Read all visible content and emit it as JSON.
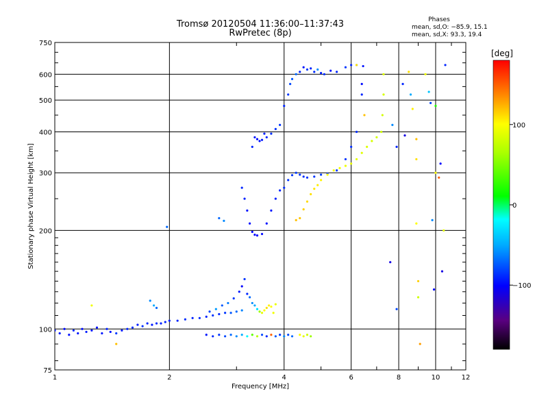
{
  "chart_data": {
    "type": "scatter",
    "title": "Tromsø 20120504 11:36:00–11:37:43",
    "subtitle": "RwPretec (8p)",
    "xlabel": "Frequency [MHz]",
    "ylabel": "Stationary phase Virtual Height [km]",
    "x_scale": "log",
    "y_scale": "log",
    "xlim": [
      1,
      12
    ],
    "ylim": [
      75,
      750
    ],
    "x_ticks": [
      1,
      2,
      4,
      6,
      8,
      10,
      12
    ],
    "y_ticks": [
      75,
      100,
      200,
      300,
      400,
      500,
      600,
      750
    ],
    "grid": true,
    "phases_box": {
      "heading": "Phases",
      "line1": "mean, sd,O: −85.9, 15.1",
      "line2": "mean, sd,X:  93.3, 19.4"
    },
    "colorbar": {
      "unit": "[deg]",
      "range": [
        -180,
        180
      ],
      "tick_values": [
        100,
        0,
        -100
      ],
      "tick_labels": [
        "100",
        "0",
        "−100"
      ]
    },
    "series": [
      {
        "points": [
          [
            1.0,
            99,
            -95
          ],
          [
            1.03,
            97,
            -92
          ],
          [
            1.06,
            100,
            -98
          ],
          [
            1.09,
            96,
            -96
          ],
          [
            1.12,
            99,
            -90
          ],
          [
            1.15,
            97,
            -94
          ],
          [
            1.18,
            100,
            -97
          ],
          [
            1.21,
            98,
            -92
          ],
          [
            1.25,
            99,
            -95
          ],
          [
            1.29,
            101,
            -96
          ],
          [
            1.33,
            97,
            -93
          ],
          [
            1.37,
            100,
            -91
          ],
          [
            1.4,
            98,
            -95
          ],
          [
            1.45,
            97,
            -84
          ],
          [
            1.5,
            99,
            -94
          ],
          [
            1.55,
            100,
            -90
          ],
          [
            1.6,
            101,
            -88
          ],
          [
            1.65,
            103,
            -92
          ],
          [
            1.7,
            102,
            -87
          ],
          [
            1.75,
            104,
            -90
          ],
          [
            1.8,
            103,
            -93
          ],
          [
            1.85,
            104,
            -89
          ],
          [
            1.9,
            104,
            -91
          ],
          [
            1.95,
            105,
            -90
          ],
          [
            2.0,
            106,
            -92
          ],
          [
            2.1,
            106,
            -90
          ],
          [
            2.2,
            107,
            -88
          ],
          [
            2.3,
            108,
            -91
          ],
          [
            2.4,
            108,
            -89
          ],
          [
            2.5,
            109,
            -90
          ],
          [
            2.6,
            110,
            -86
          ],
          [
            2.7,
            111,
            -88
          ],
          [
            2.8,
            112,
            -85
          ],
          [
            2.9,
            112,
            -75
          ],
          [
            3.0,
            113,
            -70
          ],
          [
            3.1,
            114,
            -62
          ]
        ]
      },
      {
        "points": [
          [
            1.45,
            90,
            120
          ],
          [
            1.25,
            118,
            95
          ],
          [
            1.97,
            205,
            -70
          ],
          [
            1.78,
            122,
            -60
          ],
          [
            1.82,
            118,
            -50
          ],
          [
            1.85,
            116,
            -70
          ],
          [
            2.55,
            113,
            -80
          ],
          [
            2.65,
            115,
            -55
          ],
          [
            2.75,
            118,
            -75
          ],
          [
            2.85,
            120,
            -65
          ],
          [
            2.95,
            124,
            -85
          ],
          [
            3.05,
            130,
            -95
          ],
          [
            3.1,
            135,
            -100
          ],
          [
            3.15,
            142,
            -85
          ],
          [
            3.2,
            128,
            -90
          ],
          [
            3.25,
            125,
            -70
          ],
          [
            3.3,
            120,
            -60
          ],
          [
            3.35,
            118,
            -50
          ],
          [
            3.4,
            115,
            -30
          ],
          [
            3.45,
            113,
            60
          ],
          [
            3.5,
            112,
            90
          ],
          [
            3.55,
            114,
            100
          ],
          [
            3.6,
            116,
            110
          ],
          [
            3.65,
            118,
            105
          ],
          [
            3.7,
            117,
            100
          ],
          [
            3.75,
            112,
            95
          ],
          [
            3.8,
            119,
            92
          ],
          [
            2.7,
            218,
            -70
          ],
          [
            2.78,
            214,
            -60
          ]
        ]
      },
      {
        "points": [
          [
            2.5,
            96,
            -95
          ],
          [
            2.6,
            95,
            -90
          ],
          [
            2.7,
            96,
            -85
          ],
          [
            2.8,
            95,
            -80
          ],
          [
            2.9,
            96,
            -70
          ],
          [
            3.0,
            95,
            -60
          ],
          [
            3.1,
            96,
            -50
          ],
          [
            3.2,
            95,
            -20
          ],
          [
            3.3,
            96,
            40
          ],
          [
            3.4,
            95,
            70
          ],
          [
            3.5,
            96,
            -80
          ],
          [
            3.6,
            95,
            -90
          ],
          [
            3.7,
            96,
            150
          ],
          [
            3.8,
            95,
            -75
          ],
          [
            3.9,
            96,
            -85
          ],
          [
            4.0,
            95,
            -60
          ],
          [
            4.1,
            96,
            -80
          ],
          [
            4.2,
            95,
            -70
          ],
          [
            4.4,
            96,
            100
          ],
          [
            4.5,
            95,
            90
          ],
          [
            4.6,
            96,
            80
          ],
          [
            4.7,
            95,
            60
          ]
        ]
      },
      {
        "points": [
          [
            3.3,
            360,
            -90
          ],
          [
            3.35,
            385,
            -95
          ],
          [
            3.4,
            380,
            -98
          ],
          [
            3.45,
            375,
            -96
          ],
          [
            3.5,
            378,
            -94
          ],
          [
            3.55,
            395,
            -92
          ],
          [
            3.6,
            385,
            -90
          ],
          [
            3.7,
            395,
            -88
          ],
          [
            3.8,
            408,
            -86
          ],
          [
            3.9,
            420,
            -85
          ],
          [
            4.0,
            480,
            -90
          ],
          [
            4.1,
            520,
            -85
          ],
          [
            4.15,
            560,
            -80
          ],
          [
            4.2,
            580,
            -75
          ],
          [
            4.3,
            600,
            -70
          ],
          [
            4.4,
            610,
            -90
          ],
          [
            4.5,
            630,
            -95
          ],
          [
            4.6,
            620,
            -85
          ],
          [
            4.7,
            625,
            -90
          ],
          [
            4.8,
            610,
            -88
          ],
          [
            4.9,
            620,
            -60
          ],
          [
            5.0,
            605,
            -92
          ],
          [
            5.1,
            600,
            -88
          ],
          [
            5.3,
            615,
            -95
          ],
          [
            5.5,
            610,
            -90
          ],
          [
            5.8,
            630,
            -85
          ],
          [
            6.0,
            640,
            -90
          ],
          [
            6.2,
            640,
            -88
          ],
          [
            6.45,
            635,
            -95
          ],
          [
            6.4,
            560,
            -98
          ]
        ]
      },
      {
        "points": [
          [
            3.1,
            270,
            -90
          ],
          [
            3.15,
            250,
            -92
          ],
          [
            3.2,
            230,
            -95
          ],
          [
            3.25,
            210,
            -97
          ],
          [
            3.3,
            198,
            -99
          ],
          [
            3.35,
            194,
            -100
          ],
          [
            3.4,
            193,
            -100
          ],
          [
            3.5,
            195,
            -98
          ],
          [
            3.6,
            210,
            -96
          ],
          [
            3.7,
            230,
            -94
          ],
          [
            3.8,
            250,
            -92
          ],
          [
            3.9,
            265,
            -90
          ],
          [
            4.0,
            270,
            -88
          ],
          [
            4.1,
            285,
            -86
          ],
          [
            4.2,
            295,
            -85
          ],
          [
            4.3,
            300,
            -84
          ],
          [
            4.4,
            296,
            -86
          ],
          [
            4.5,
            292,
            -88
          ],
          [
            4.6,
            290,
            -86
          ],
          [
            4.8,
            292,
            -85
          ],
          [
            5.0,
            296,
            -84
          ],
          [
            5.2,
            298,
            -85
          ],
          [
            5.5,
            305,
            -84
          ],
          [
            5.8,
            330,
            -86
          ],
          [
            6.0,
            360,
            -87
          ],
          [
            6.2,
            400,
            -88
          ],
          [
            6.4,
            520,
            -90
          ]
        ]
      },
      {
        "points": [
          [
            4.3,
            215,
            120
          ],
          [
            4.4,
            218,
            118
          ],
          [
            4.5,
            232,
            115
          ],
          [
            4.6,
            245,
            112
          ],
          [
            4.7,
            258,
            110
          ],
          [
            4.8,
            268,
            108
          ],
          [
            4.9,
            275,
            106
          ],
          [
            5.0,
            285,
            104
          ],
          [
            5.2,
            296,
            100
          ],
          [
            5.4,
            305,
            98
          ],
          [
            5.6,
            310,
            96
          ],
          [
            5.8,
            315,
            94
          ],
          [
            6.0,
            320,
            92
          ],
          [
            6.2,
            330,
            90
          ],
          [
            6.4,
            345,
            88
          ],
          [
            6.6,
            360,
            86
          ],
          [
            6.8,
            375,
            84
          ],
          [
            7.0,
            385,
            82
          ],
          [
            7.2,
            400,
            80
          ],
          [
            7.25,
            450,
            82
          ],
          [
            7.3,
            520,
            84
          ],
          [
            7.3,
            600,
            86
          ],
          [
            6.5,
            450,
            120
          ],
          [
            6.2,
            640,
            110
          ]
        ]
      },
      {
        "points": [
          [
            7.6,
            160,
            -110
          ],
          [
            7.9,
            115,
            -80
          ],
          [
            7.7,
            420,
            -60
          ],
          [
            7.9,
            360,
            -90
          ],
          [
            8.3,
            390,
            -110
          ],
          [
            8.2,
            560,
            -90
          ],
          [
            8.5,
            610,
            110
          ],
          [
            8.6,
            520,
            -50
          ],
          [
            8.7,
            470,
            105
          ],
          [
            8.9,
            380,
            120
          ],
          [
            8.9,
            330,
            110
          ],
          [
            8.9,
            210,
            100
          ],
          [
            9.0,
            140,
            115
          ],
          [
            9.0,
            125,
            80
          ],
          [
            9.1,
            90,
            130
          ],
          [
            9.4,
            600,
            95
          ],
          [
            9.6,
            530,
            -40
          ],
          [
            9.7,
            490,
            -80
          ],
          [
            9.8,
            215,
            -60
          ],
          [
            9.9,
            132,
            -100
          ],
          [
            10.0,
            300,
            100
          ],
          [
            10.2,
            290,
            150
          ],
          [
            10.3,
            320,
            -100
          ],
          [
            10.4,
            150,
            -110
          ],
          [
            10.5,
            200,
            90
          ],
          [
            10.6,
            640,
            -90
          ],
          [
            10.0,
            480,
            20
          ]
        ]
      }
    ]
  }
}
